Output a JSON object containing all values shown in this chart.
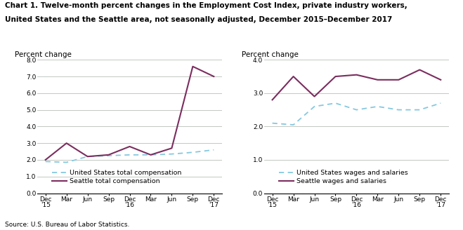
{
  "title_line1": "Chart 1. Twelve-month percent changes in the Employment Cost Index, private industry workers,",
  "title_line2": "United States and the Seattle area, not seasonally adjusted, December 2015–December 2017",
  "title_fontsize": 7.5,
  "source": "Source: U.S. Bureau of Labor Statistics.",
  "xtick_labels": [
    "Dec\n'15",
    "Mar",
    "Jun",
    "Sep",
    "Dec\n'16",
    "Mar",
    "Jun",
    "Sep",
    "Dec\n'17"
  ],
  "left": {
    "ylabel": "Percent change",
    "ylim": [
      0.0,
      8.0
    ],
    "yticks": [
      0.0,
      1.0,
      2.0,
      3.0,
      4.0,
      5.0,
      6.0,
      7.0,
      8.0
    ],
    "us_total": [
      1.9,
      1.85,
      2.2,
      2.25,
      2.3,
      2.3,
      2.35,
      2.45,
      2.6
    ],
    "seattle_total": [
      2.0,
      3.0,
      2.2,
      2.3,
      2.8,
      2.3,
      2.7,
      7.6,
      7.0
    ],
    "legend1": "United States total compensation",
    "legend2": "Seattle total compensation"
  },
  "right": {
    "ylabel": "Percent change",
    "ylim": [
      0.0,
      4.0
    ],
    "yticks": [
      0.0,
      1.0,
      2.0,
      3.0,
      4.0
    ],
    "us_wages": [
      2.1,
      2.05,
      2.6,
      2.7,
      2.5,
      2.6,
      2.5,
      2.5,
      2.7
    ],
    "seattle_wages": [
      2.8,
      3.5,
      2.9,
      3.5,
      3.55,
      3.4,
      3.4,
      3.7,
      3.4
    ],
    "legend1": "United States wages and salaries",
    "legend2": "Seattle wages and salaries"
  },
  "us_color": "#85c8e0",
  "seattle_color": "#7b2d5e",
  "us_linestyle": "--",
  "seattle_linestyle": "-",
  "grid_color": "#b8c0b8",
  "bg_color": "#ffffff",
  "axis_fontsize": 6.5,
  "legend_fontsize": 6.8,
  "ylabel_fontsize": 7.5
}
